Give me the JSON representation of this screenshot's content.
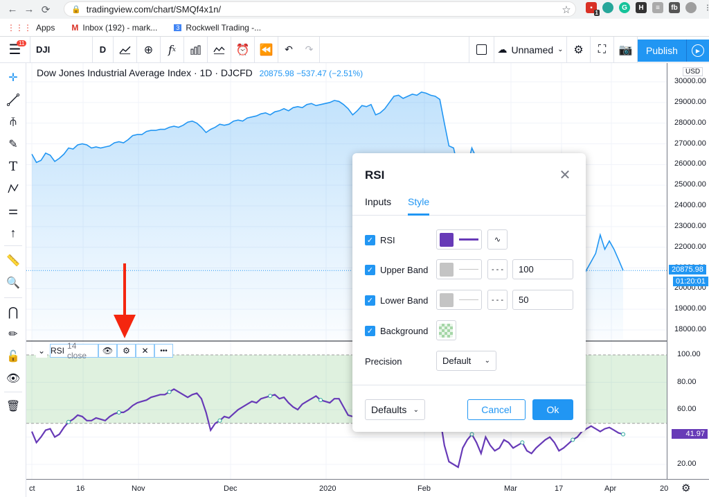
{
  "browser": {
    "url": "tradingview.com/chart/SMQf4x1n/",
    "bookmarks": [
      {
        "label": "Apps",
        "icon": "apps-grid-icon"
      },
      {
        "label": "Inbox (192) - mark...",
        "icon": "gmail-icon"
      },
      {
        "label": "Rockwell Trading -...",
        "icon": "calendar-icon"
      }
    ],
    "ext_badge": "1"
  },
  "toolbar": {
    "menu_badge": "11",
    "symbol": "DJI",
    "interval": "D",
    "layout_name": "Unnamed",
    "publish_label": "Publish"
  },
  "chart": {
    "title": "Dow Jones Industrial Average Index · 1D · DJCFD",
    "last_price": "20875.98",
    "change": "−537.47 (−2.51%)",
    "currency": "USD",
    "price_ticks": [
      "30000.00",
      "29000.00",
      "28000.00",
      "27000.00",
      "26000.00",
      "25000.00",
      "24000.00",
      "23000.00",
      "22000.00",
      "21000.00",
      "20000.00",
      "19000.00",
      "18000.00"
    ],
    "last_price_label": "20875.98",
    "countdown_label": "01:20:01",
    "rsi_ticks": [
      "100.00",
      "80.00",
      "60.00",
      "40.00",
      "20.00"
    ],
    "rsi_value_label": "41.97",
    "time_ticks": [
      "ct",
      "16",
      "Nov",
      "Dec",
      "2020",
      "Feb",
      "Mar",
      "17",
      "Apr",
      "20"
    ],
    "accent": "#2196f3",
    "rsi_color": "#673ab7"
  },
  "chart_data": {
    "type": "line",
    "title": "Dow Jones Industrial Average Index · 1D · DJCFD",
    "xlabel": "",
    "ylabel": "",
    "ylim": [
      17500,
      30500
    ],
    "x": [
      0,
      1,
      2,
      3,
      4,
      5,
      6,
      7,
      8,
      9,
      10,
      11,
      12,
      13,
      14,
      15,
      16,
      17,
      18,
      19,
      20,
      21,
      22,
      23,
      24,
      25,
      26,
      27,
      28,
      29,
      30,
      31,
      32,
      33,
      34,
      35,
      36,
      37,
      38,
      39,
      40,
      41,
      42,
      43,
      44,
      45,
      46,
      47,
      48,
      49,
      50,
      51,
      52,
      53,
      54,
      55,
      56,
      57,
      58,
      59,
      60,
      61,
      62,
      63,
      64,
      65,
      66,
      67,
      68,
      69,
      70,
      71,
      72,
      73,
      74,
      75,
      76,
      77,
      78,
      79,
      80,
      81,
      82,
      83,
      84,
      85,
      86,
      87,
      88,
      89,
      90,
      91,
      92,
      93,
      94,
      95,
      96,
      97,
      98,
      99,
      100,
      101,
      102,
      103,
      104,
      105,
      106,
      107,
      108,
      109,
      110,
      111,
      112,
      113,
      114,
      115,
      116,
      117,
      118,
      119,
      120,
      121,
      122,
      123,
      124,
      125,
      126,
      127,
      128,
      129
    ],
    "series": [
      {
        "values": [
          26500,
          26100,
          26200,
          26550,
          26450,
          26150,
          26300,
          26500,
          26800,
          26750,
          26950,
          27000,
          26950,
          26800,
          26850,
          26800,
          26850,
          26900,
          27050,
          27100,
          27050,
          27200,
          27400,
          27450,
          27450,
          27600,
          27650,
          27650,
          27700,
          27700,
          27800,
          27850,
          27800,
          27900,
          28050,
          28100,
          28000,
          27800,
          27550,
          27700,
          27800,
          27950,
          27900,
          27950,
          28100,
          28150,
          28100,
          28250,
          28300,
          28350,
          28450,
          28500,
          28400,
          28550,
          28600,
          28700,
          28600,
          28750,
          28800,
          28750,
          28900,
          28950,
          28850,
          28900,
          28950,
          29000,
          29100,
          29050,
          28900,
          28700,
          28400,
          28600,
          28850,
          28800,
          28900,
          28400,
          28500,
          28700,
          29000,
          29300,
          29350,
          29200,
          29300,
          29400,
          29350,
          29500,
          29450,
          29350,
          29300,
          29150,
          28000,
          26900,
          26800,
          25800,
          25400,
          25900,
          26800,
          26300,
          25800,
          25100,
          24600,
          23800,
          23200,
          22700,
          22100,
          21200,
          20700,
          19800,
          20500,
          21000,
          20900,
          21400,
          21800,
          21000,
          20200,
          19400,
          19300,
          19900,
          21200,
          20800,
          20500,
          20900,
          21300,
          21700,
          22600,
          21900,
          22300,
          21900,
          21400,
          20876
        ]
      }
    ],
    "rsi": {
      "name": "RSI 14 close",
      "ylim": [
        10,
        105
      ],
      "upper_band": 100,
      "lower_band": 50,
      "values": [
        44,
        36,
        40,
        45,
        46,
        40,
        42,
        47,
        51,
        53,
        56,
        55,
        52,
        52,
        54,
        53,
        52,
        55,
        57,
        58,
        58,
        60,
        63,
        65,
        66,
        67,
        69,
        70,
        71,
        71,
        73,
        75,
        73,
        71,
        69,
        71,
        72,
        68,
        58,
        45,
        50,
        52,
        55,
        54,
        57,
        60,
        62,
        64,
        66,
        65,
        68,
        69,
        70,
        71,
        68,
        69,
        65,
        62,
        60,
        64,
        66,
        68,
        70,
        67,
        66,
        65,
        68,
        68,
        62,
        56,
        55,
        58,
        62,
        60,
        63,
        50,
        52,
        56,
        63,
        66,
        68,
        62,
        64,
        66,
        65,
        68,
        66,
        62,
        60,
        55,
        34,
        22,
        20,
        18,
        32,
        38,
        42,
        36,
        28,
        40,
        34,
        30,
        32,
        38,
        36,
        32,
        34,
        36,
        30,
        28,
        32,
        35,
        38,
        40,
        36,
        30,
        32,
        35,
        38,
        40,
        44,
        46,
        48,
        46,
        44,
        46,
        47,
        45,
        43,
        42
      ]
    }
  },
  "rsi_legend": {
    "label": "RSI",
    "params": "14 close"
  },
  "dialog": {
    "title": "RSI",
    "tabs": [
      {
        "label": "Inputs"
      },
      {
        "label": "Style"
      }
    ],
    "active_tab": "Style",
    "rows": {
      "rsi_label": "RSI",
      "upper_label": "Upper Band",
      "upper_value": "100",
      "lower_label": "Lower Band",
      "lower_value": "50",
      "background_label": "Background",
      "precision_label": "Precision",
      "precision_value": "Default"
    },
    "defaults_label": "Defaults",
    "cancel_label": "Cancel",
    "ok_label": "Ok",
    "rsi_color": "#673ab7",
    "band_color": "#c4c4c4"
  }
}
